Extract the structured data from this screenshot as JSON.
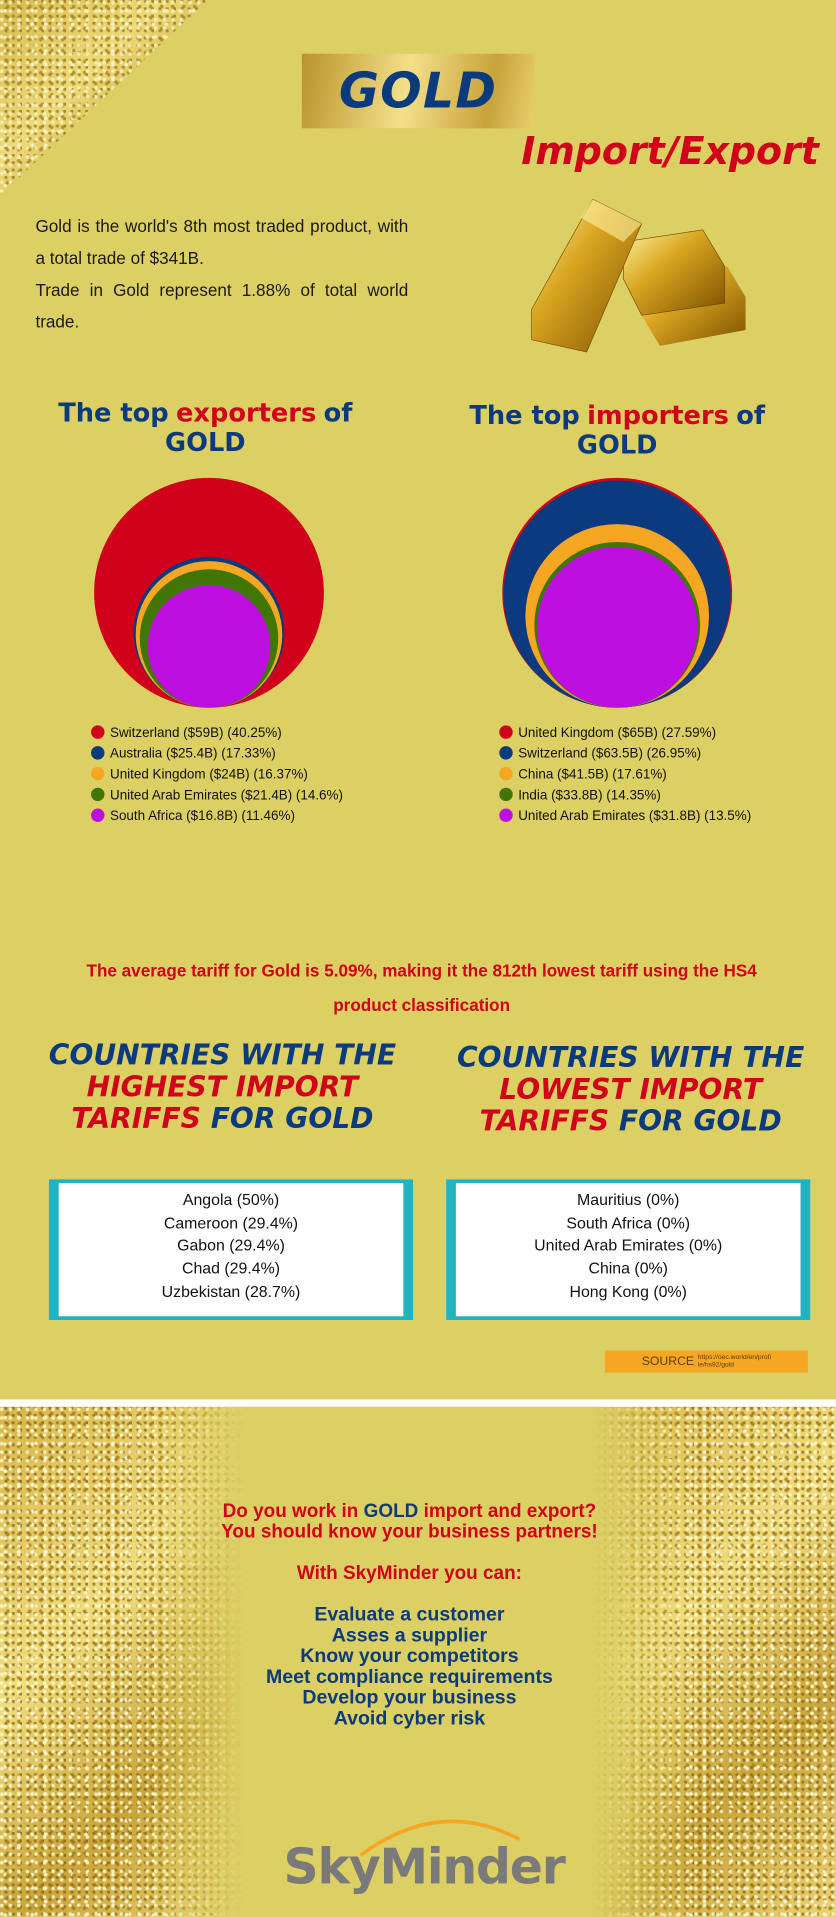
{
  "header": {
    "title": "GOLD",
    "subtitle": "Import/Export"
  },
  "intro": [
    "Gold is the world's 8th most traded product, with a total trade of $341B.",
    "Trade in Gold represent 1.88% of total world trade."
  ],
  "chart_data": [
    {
      "type": "circles",
      "title": [
        "The top",
        "exporters",
        "of",
        "GOLD"
      ],
      "categories": [
        "Switzerland ($59B)",
        "Australia ($25.4B)",
        "United Kingdom ($24B)",
        "United Arab Emirates ($21.4B)",
        "South Africa ($16.8B)"
      ],
      "values": [
        40.25,
        17.33,
        16.37,
        14.6,
        11.46
      ],
      "value_labels": [
        "(40.25%)",
        "(17.33%)",
        "(16.37%)",
        "(14.6%)",
        "(11.46%)"
      ],
      "colors": [
        "#d0021b",
        "#0b3a7e",
        "#f5a623",
        "#417505",
        "#bd10e0"
      ]
    },
    {
      "type": "circles",
      "title": [
        "The top",
        "importers",
        "of",
        "GOLD"
      ],
      "categories": [
        "United Kingdom ($65B)",
        "Switzerland ($63.5B)",
        "China ($41.5B)",
        "India ($33.8B)",
        "United Arab Emirates ($31.8B)"
      ],
      "values": [
        27.59,
        26.95,
        17.61,
        14.35,
        13.5
      ],
      "value_labels": [
        "(27.59%)",
        "(26.95%)",
        "(17.61%)",
        "(14.35%)",
        "(13.5%)"
      ],
      "colors": [
        "#d0021b",
        "#0b3a7e",
        "#f5a623",
        "#417505",
        "#bd10e0"
      ]
    }
  ],
  "tariff_note": "The average tariff for Gold is 5.09%, making it the 812th lowest tariff using the HS4 product classification",
  "tariff_tables": [
    {
      "title": [
        "COUNTRIES WITH THE",
        "HIGHEST IMPORT",
        "TARIFFS",
        "FOR GOLD"
      ],
      "rows": [
        "Angola (50%)",
        "Cameroon (29.4%)",
        "Gabon (29.4%)",
        "Chad (29.4%)",
        "Uzbekistan (28.7%)"
      ]
    },
    {
      "title": [
        "COUNTRIES WITH THE",
        "LOWEST IMPORT",
        "TARIFFS",
        "FOR GOLD"
      ],
      "rows": [
        "Mauritius (0%)",
        "South Africa (0%)",
        "United Arab Emirates (0%)",
        "China (0%)",
        "Hong Kong (0%)"
      ]
    }
  ],
  "source": {
    "label": "SOURCE",
    "url": "https://oec.world/en/profile/hs92/gold"
  },
  "cta": {
    "question": [
      "Do you work in",
      "GOLD",
      "import and export?"
    ],
    "line2": "You should know your business partners!",
    "lead": "With SkyMinder you can:",
    "items": [
      "Evaluate a customer",
      "Asses a supplier",
      "Know your competitors",
      "Meet compliance requirements",
      "Develop your business",
      "Avoid cyber risk"
    ]
  },
  "logo": "SkyMinder"
}
